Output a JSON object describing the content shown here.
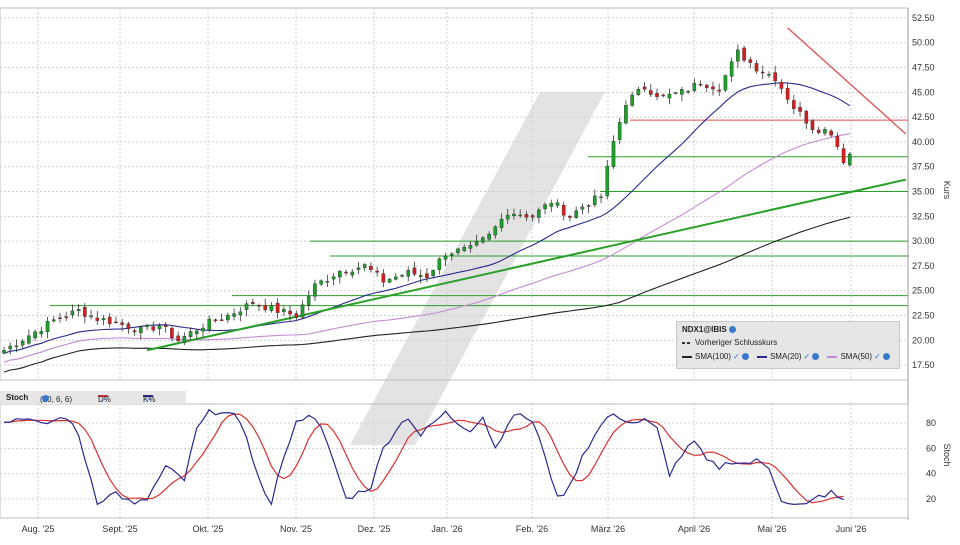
{
  "chart_data": [
    {
      "type": "candlestick",
      "instrument": "NDX1@IBIS",
      "ylabel": "Kurs",
      "ylim": [
        16,
        53.5
      ],
      "y_ticks": [
        "52.50",
        "50.00",
        "47.50",
        "45.00",
        "42.50",
        "40.00",
        "37.50",
        "35.00",
        "32.50",
        "30.00",
        "27.50",
        "25.00",
        "22.50",
        "20.00",
        "17.50"
      ],
      "x_ticks": [
        "Aug. '25",
        "Sept. '25",
        "Okt. '25",
        "Nov. '25",
        "Dez. '25",
        "Jan. '26",
        "Feb. '26",
        "März '26",
        "April '26",
        "Mai '26",
        "Juni '26"
      ],
      "grid": true,
      "legend": {
        "title": "NDX1@IBIS",
        "previous_close": "Vorheriger Schlusskurs",
        "sma100": "SMA(100)",
        "sma20": "SMA(20)",
        "sma50": "SMA(50)"
      },
      "colors": {
        "up": "#1e9e2a",
        "down": "#d81e1e",
        "sma100": "#222222",
        "sma20": "#2a2a8e",
        "sma50": "#c58ad6",
        "support": "#2aa02a",
        "resistance": "#e05050"
      },
      "close_anchors": [
        [
          0,
          19.0
        ],
        [
          4,
          20.5
        ],
        [
          8,
          22.0
        ],
        [
          12,
          23.0
        ],
        [
          15,
          22.2
        ],
        [
          18,
          21.8
        ],
        [
          22,
          21.0
        ],
        [
          25,
          21.5
        ],
        [
          28,
          20.0
        ],
        [
          32,
          21.5
        ],
        [
          36,
          22.5
        ],
        [
          40,
          23.8
        ],
        [
          44,
          23.0
        ],
        [
          47,
          22.5
        ],
        [
          50,
          25.5
        ],
        [
          54,
          27.0
        ],
        [
          58,
          27.5
        ],
        [
          61,
          26.0
        ],
        [
          65,
          26.8
        ],
        [
          68,
          26.5
        ],
        [
          71,
          28.8
        ],
        [
          75,
          29.2
        ],
        [
          78,
          30.5
        ],
        [
          81,
          33.0
        ],
        [
          85,
          32.5
        ],
        [
          88,
          34.0
        ],
        [
          91,
          32.5
        ],
        [
          93,
          33.5
        ],
        [
          96,
          34.5
        ],
        [
          98,
          40.0
        ],
        [
          100,
          44.0
        ],
        [
          103,
          45.5
        ],
        [
          106,
          44.5
        ],
        [
          109,
          45.0
        ],
        [
          112,
          46.0
        ],
        [
          115,
          45.5
        ],
        [
          118,
          49.0
        ],
        [
          121,
          47.5
        ],
        [
          124,
          46.5
        ],
        [
          127,
          43.5
        ],
        [
          130,
          41.5
        ],
        [
          133,
          41.0
        ],
        [
          135,
          38.2
        ],
        [
          136,
          38.8
        ]
      ],
      "horizontal_levels": {
        "support": [
          35.0,
          38.5,
          30.0,
          28.5,
          24.5,
          23.5
        ],
        "resistance": [
          42.2
        ]
      },
      "trendlines": [
        {
          "name": "uptrend",
          "from": [
            23,
            19.0
          ],
          "to": [
            145,
            36.2
          ]
        },
        {
          "name": "downtrend",
          "from": [
            126,
            51.5
          ],
          "to": [
            145,
            40.8
          ]
        }
      ]
    },
    {
      "type": "line",
      "title": "Stoch",
      "parameters": "(10, 6, 6)",
      "ylabel": "Stoch",
      "ylim": [
        5,
        95
      ],
      "y_ticks": [
        "80",
        "60",
        "40",
        "20"
      ],
      "series": [
        {
          "name": "D%",
          "color": "#d83030"
        },
        {
          "name": "K%",
          "color": "#2a2a8e"
        }
      ],
      "k_anchors": [
        [
          0,
          80
        ],
        [
          3,
          85
        ],
        [
          6,
          78
        ],
        [
          8,
          82
        ],
        [
          10,
          85
        ],
        [
          12,
          70
        ],
        [
          15,
          18
        ],
        [
          18,
          25
        ],
        [
          21,
          15
        ],
        [
          23,
          20
        ],
        [
          26,
          45
        ],
        [
          29,
          35
        ],
        [
          31,
          75
        ],
        [
          33,
          88
        ],
        [
          35,
          90
        ],
        [
          37,
          85
        ],
        [
          39,
          70
        ],
        [
          41,
          35
        ],
        [
          43,
          15
        ],
        [
          45,
          55
        ],
        [
          47,
          80
        ],
        [
          49,
          88
        ],
        [
          51,
          75
        ],
        [
          53,
          50
        ],
        [
          55,
          20
        ],
        [
          57,
          25
        ],
        [
          59,
          30
        ],
        [
          61,
          60
        ],
        [
          63,
          75
        ],
        [
          65,
          85
        ],
        [
          67,
          70
        ],
        [
          69,
          80
        ],
        [
          71,
          88
        ],
        [
          73,
          80
        ],
        [
          75,
          75
        ],
        [
          77,
          85
        ],
        [
          79,
          60
        ],
        [
          81,
          80
        ],
        [
          83,
          88
        ],
        [
          85,
          80
        ],
        [
          87,
          55
        ],
        [
          89,
          20
        ],
        [
          91,
          30
        ],
        [
          93,
          55
        ],
        [
          95,
          70
        ],
        [
          97,
          85
        ],
        [
          99,
          85
        ],
        [
          101,
          80
        ],
        [
          103,
          82
        ],
        [
          105,
          75
        ],
        [
          107,
          40
        ],
        [
          109,
          55
        ],
        [
          111,
          65
        ],
        [
          113,
          50
        ],
        [
          115,
          45
        ],
        [
          117,
          50
        ],
        [
          119,
          48
        ],
        [
          121,
          50
        ],
        [
          123,
          45
        ],
        [
          125,
          20
        ],
        [
          127,
          15
        ],
        [
          129,
          15
        ],
        [
          131,
          22
        ],
        [
          133,
          25
        ],
        [
          135,
          18
        ]
      ]
    }
  ]
}
